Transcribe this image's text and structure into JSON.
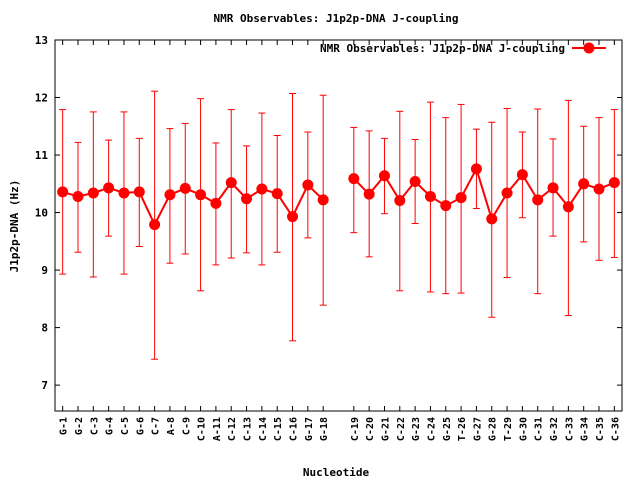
{
  "chart_data": {
    "type": "line",
    "title": "NMR Observables: J1p2p-DNA J-coupling",
    "xlabel": "Nucleotide",
    "ylabel": "J1p2p-DNA (Hz)",
    "ylim": [
      6.55,
      13
    ],
    "yticks": [
      7,
      8,
      9,
      10,
      11,
      12,
      13
    ],
    "legend": {
      "position": "top-right",
      "entries": [
        "NMR Observables: J1p2p-DNA J-coupling"
      ]
    },
    "grid": false,
    "color": "#ff0000",
    "categories": [
      "G-1",
      "G-2",
      "C-3",
      "G-4",
      "C-5",
      "G-6",
      "C-7",
      "A-8",
      "C-9",
      "C-10",
      "A-11",
      "C-12",
      "C-13",
      "C-14",
      "C-15",
      "C-16",
      "G-17",
      "G-18",
      "C-19",
      "C-20",
      "G-21",
      "C-22",
      "G-23",
      "C-24",
      "G-25",
      "T-26",
      "G-27",
      "G-28",
      "T-29",
      "G-30",
      "C-31",
      "G-32",
      "C-33",
      "G-34",
      "C-35",
      "C-36"
    ],
    "x": [
      1,
      2,
      3,
      4,
      5,
      6,
      7,
      8,
      9,
      10,
      11,
      12,
      13,
      14,
      15,
      16,
      17,
      18,
      20,
      21,
      22,
      23,
      24,
      25,
      26,
      27,
      28,
      29,
      30,
      31,
      32,
      33,
      34,
      35,
      36,
      37
    ],
    "series": [
      {
        "segments": [
          [
            0,
            17
          ],
          [
            18,
            35
          ]
        ],
        "values": [
          10.36,
          10.28,
          10.34,
          10.43,
          10.34,
          10.36,
          9.79,
          10.31,
          10.42,
          10.31,
          10.16,
          10.52,
          10.24,
          10.41,
          10.33,
          9.93,
          10.48,
          10.22,
          10.59,
          10.32,
          10.64,
          10.21,
          10.54,
          10.28,
          10.12,
          10.26,
          10.76,
          9.89,
          10.34,
          10.66,
          10.22,
          10.43,
          10.1,
          10.5,
          10.41,
          10.52
        ],
        "err_low": [
          8.93,
          9.31,
          8.88,
          9.59,
          8.93,
          9.41,
          7.45,
          9.12,
          9.28,
          8.64,
          9.09,
          9.21,
          9.3,
          9.09,
          9.31,
          7.77,
          9.56,
          8.39,
          9.65,
          9.23,
          9.98,
          8.64,
          9.81,
          8.62,
          8.59,
          8.6,
          10.07,
          8.18,
          8.87,
          9.91,
          8.59,
          9.59,
          8.21,
          9.49,
          9.17,
          9.22
        ],
        "err_high": [
          11.79,
          11.22,
          11.75,
          11.26,
          11.75,
          11.29,
          12.11,
          11.46,
          11.55,
          11.98,
          11.21,
          11.79,
          11.16,
          11.73,
          11.34,
          12.07,
          11.4,
          12.04,
          11.48,
          11.42,
          11.29,
          11.76,
          11.27,
          11.92,
          11.65,
          11.88,
          11.45,
          11.57,
          11.81,
          11.4,
          11.8,
          11.28,
          11.95,
          11.5,
          11.65,
          11.79
        ]
      }
    ]
  }
}
